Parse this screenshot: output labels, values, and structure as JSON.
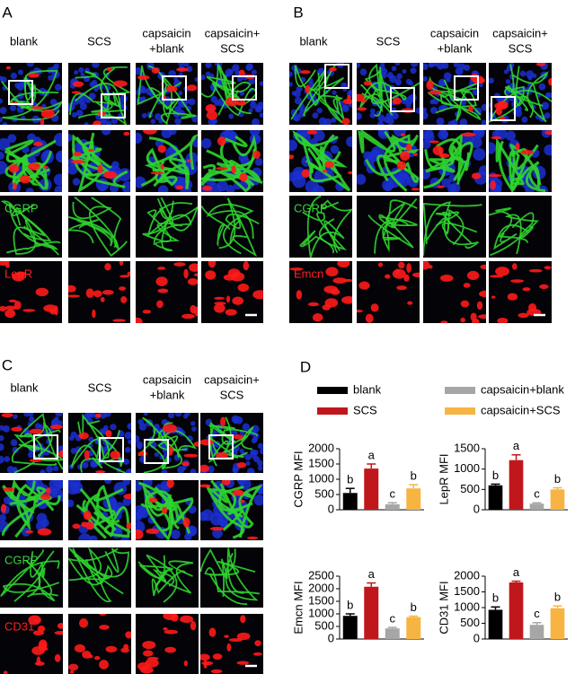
{
  "panels": [
    {
      "label": "A",
      "columns": [
        [
          "blank"
        ],
        [
          "SCS"
        ],
        [
          "capsaicin",
          "+blank"
        ],
        [
          "capsaicin+",
          "SCS"
        ]
      ],
      "stains": [
        "CGRP",
        "LepR"
      ]
    },
    {
      "label": "B",
      "columns": [
        [
          "blank"
        ],
        [
          "SCS"
        ],
        [
          "capsaicin",
          "+blank"
        ],
        [
          "capsaicin+",
          "SCS"
        ]
      ],
      "stains": [
        "CGRP",
        "Emcn"
      ]
    },
    {
      "label": "C",
      "columns": [
        [
          "blank"
        ],
        [
          "SCS"
        ],
        [
          "capsaicin",
          "+blank"
        ],
        [
          "capsaicin+",
          "SCS"
        ]
      ],
      "stains": [
        "CGRP",
        "CD31"
      ]
    }
  ],
  "chart_panel_label": "D",
  "legend": [
    {
      "name": "blank",
      "color": "#000000"
    },
    {
      "name": "SCS",
      "color": "#c0171d"
    },
    {
      "name": "capsaicin+blank",
      "color": "#a6a6a6"
    },
    {
      "name": "capsaicin+SCS",
      "color": "#f7b443"
    }
  ],
  "chart_data": [
    {
      "type": "bar",
      "ylabel": "CGRP MFI",
      "values": [
        550,
        1350,
        180,
        700
      ],
      "errors": [
        150,
        150,
        50,
        120
      ],
      "annotations": [
        "b",
        "a",
        "c",
        "b"
      ],
      "ylim": [
        0,
        2000
      ],
      "yticks": [
        0,
        500,
        1000,
        1500,
        2000
      ]
    },
    {
      "type": "bar",
      "ylabel": "LepR MFI",
      "values": [
        600,
        1220,
        150,
        500
      ],
      "errors": [
        30,
        130,
        20,
        40
      ],
      "annotations": [
        "b",
        "a",
        "c",
        "b"
      ],
      "ylim": [
        0,
        1500
      ],
      "yticks": [
        0,
        500,
        1000,
        1500
      ]
    },
    {
      "type": "bar",
      "ylabel": "Emcn MFI",
      "values": [
        920,
        2080,
        420,
        870
      ],
      "errors": [
        80,
        150,
        40,
        40
      ],
      "annotations": [
        "b",
        "a",
        "c",
        "b"
      ],
      "ylim": [
        0,
        2500
      ],
      "yticks": [
        0,
        500,
        1000,
        1500,
        2000,
        2500
      ]
    },
    {
      "type": "bar",
      "ylabel": "CD31 MFI",
      "values": [
        930,
        1800,
        450,
        980
      ],
      "errors": [
        90,
        40,
        70,
        70
      ],
      "annotations": [
        "b",
        "a",
        "c",
        "b"
      ],
      "ylim": [
        0,
        2000
      ],
      "yticks": [
        0,
        500,
        1000,
        1500,
        2000
      ]
    }
  ]
}
